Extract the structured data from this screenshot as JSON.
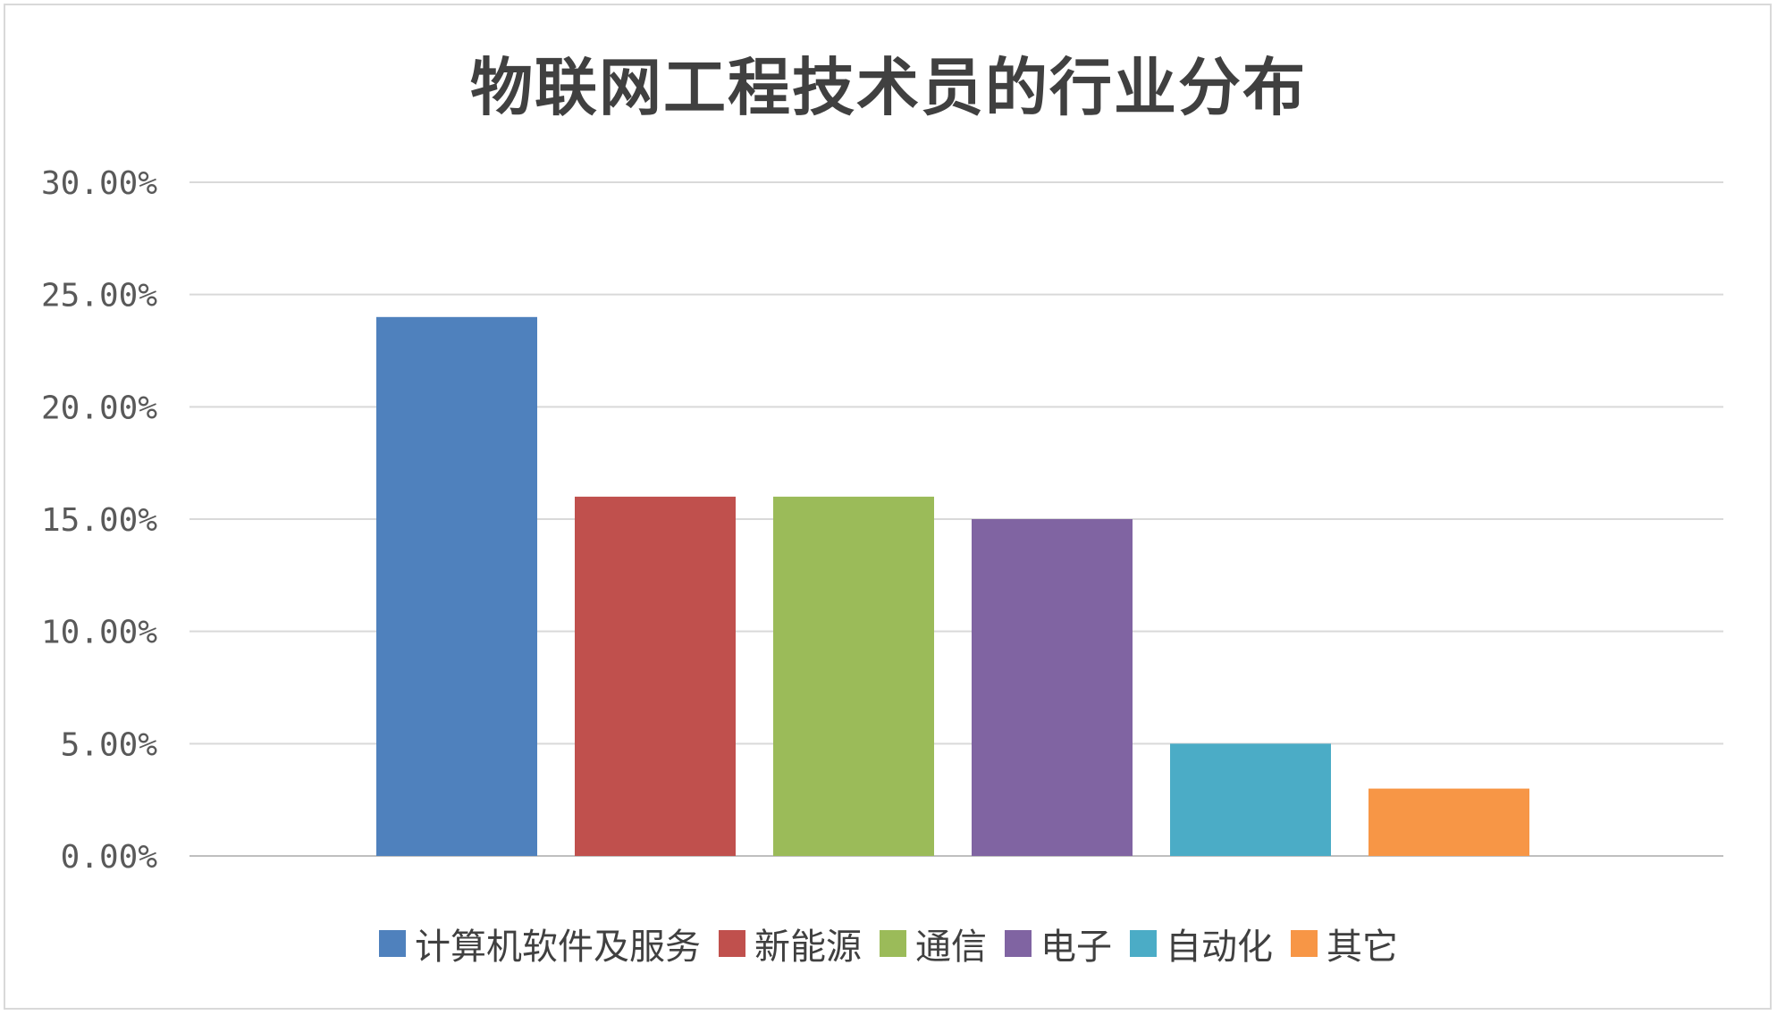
{
  "chart_data": {
    "type": "bar",
    "title": "物联网工程技术员的行业分布",
    "xlabel": "",
    "ylabel": "",
    "categories": [
      "计算机软件及服务",
      "新能源",
      "通信",
      "电子",
      "自动化",
      "其它"
    ],
    "values": [
      24.0,
      16.0,
      16.0,
      15.0,
      5.0,
      3.0
    ],
    "colors": [
      "#4f81bd",
      "#c0504d",
      "#9bbb59",
      "#8064a2",
      "#4bacc6",
      "#f79646"
    ],
    "ylim": [
      0,
      30
    ],
    "yticks": [
      "0.00%",
      "5.00%",
      "10.00%",
      "15.00%",
      "20.00%",
      "25.00%",
      "30.00%"
    ],
    "grid": true,
    "legend": "bottom"
  }
}
